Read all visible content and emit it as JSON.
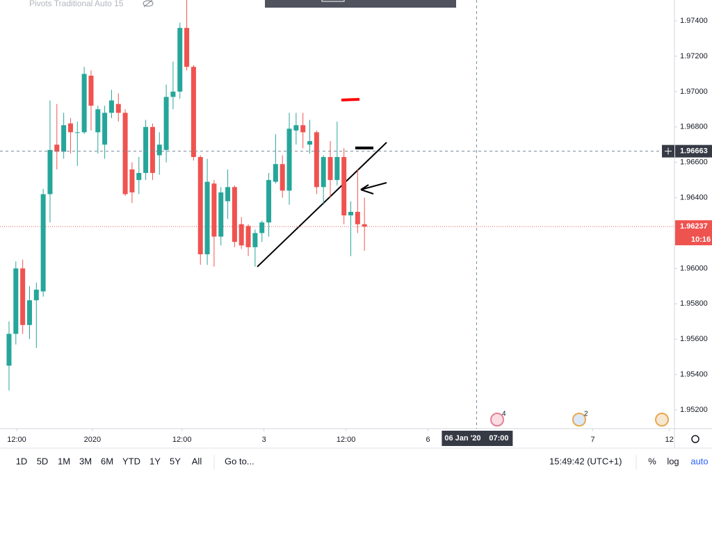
{
  "chart_data": {
    "type": "candlestick",
    "title": "Pivots Traditional Auto 15",
    "up_color": "#26a69a",
    "down_color": "#ef5350",
    "open": [
      1.9545,
      1.9563,
      1.96,
      1.9568,
      1.9582,
      1.9587,
      1.9642,
      1.967,
      1.9666,
      1.9682,
      1.9677,
      1.9677,
      1.9709,
      1.9677,
      1.967,
      1.9688,
      1.9693,
      1.9688,
      1.9656,
      1.965,
      1.9654,
      1.968,
      1.9664,
      1.9667,
      1.9697,
      1.97,
      1.9736,
      1.9714,
      1.9663,
      1.9608,
      1.9648,
      1.9618,
      1.9638,
      1.9646,
      1.9625,
      1.9624,
      1.9612,
      1.962,
      1.9626,
      1.9649,
      1.9659,
      1.9644,
      1.9678,
      1.9681,
      1.967,
      1.9677,
      1.9646,
      1.9663,
      1.965,
      1.9663,
      1.963,
      1.9632,
      1.9625
    ],
    "high": [
      1.957,
      1.9604,
      1.9605,
      1.959,
      1.9592,
      1.9645,
      1.9695,
      1.9693,
      1.9688,
      1.9685,
      1.9683,
      1.9714,
      1.9712,
      1.9692,
      1.9692,
      1.9701,
      1.9699,
      1.969,
      1.966,
      1.9663,
      1.9684,
      1.9682,
      1.9677,
      1.9704,
      1.9717,
      1.9739,
      1.9754,
      1.9715,
      1.9664,
      1.9662,
      1.965,
      1.9646,
      1.9656,
      1.9647,
      1.9629,
      1.9625,
      1.9622,
      1.9627,
      1.9654,
      1.9676,
      1.9664,
      1.9688,
      1.9688,
      1.9688,
      1.9684,
      1.9678,
      1.9664,
      1.9672,
      1.9683,
      1.9668,
      1.9638,
      1.9656,
      1.964
    ],
    "low": [
      1.9531,
      1.9557,
      1.9563,
      1.956,
      1.9555,
      1.9584,
      1.9626,
      1.9656,
      1.9662,
      1.9665,
      1.9658,
      1.9676,
      1.9678,
      1.9665,
      1.9662,
      1.9685,
      1.9683,
      1.9641,
      1.9637,
      1.9642,
      1.965,
      1.965,
      1.9653,
      1.966,
      1.969,
      1.9696,
      1.9712,
      1.9661,
      1.9602,
      1.9602,
      1.9601,
      1.9613,
      1.9628,
      1.9612,
      1.9611,
      1.9607,
      1.9601,
      1.9615,
      1.9618,
      1.9648,
      1.964,
      1.9636,
      1.967,
      1.9668,
      1.9665,
      1.9642,
      1.9636,
      1.964,
      1.9647,
      1.9625,
      1.9607,
      1.962,
      1.961
    ],
    "close": [
      1.9563,
      1.96,
      1.9568,
      1.9582,
      1.9588,
      1.9642,
      1.9667,
      1.9666,
      1.9681,
      1.9677,
      1.9677,
      1.971,
      1.9692,
      1.969,
      1.9688,
      1.9695,
      1.9688,
      1.9642,
      1.9643,
      1.9654,
      1.968,
      1.9654,
      1.967,
      1.9697,
      1.97,
      1.9736,
      1.9714,
      1.9663,
      1.9608,
      1.9649,
      1.9618,
      1.9643,
      1.9646,
      1.9615,
      1.9613,
      1.9612,
      1.962,
      1.9626,
      1.965,
      1.9659,
      1.9644,
      1.9679,
      1.9681,
      1.9677,
      1.9672,
      1.9646,
      1.9663,
      1.965,
      1.9663,
      1.963,
      1.9632,
      1.9625,
      1.96237
    ],
    "ylim": [
      1.95094,
      1.97518
    ],
    "yticks": [
      {
        "value": 1.952,
        "label": "1.95200"
      },
      {
        "value": 1.954,
        "label": "1.95400"
      },
      {
        "value": 1.956,
        "label": "1.95600"
      },
      {
        "value": 1.958,
        "label": "1.95800"
      },
      {
        "value": 1.96,
        "label": "1.96000"
      },
      {
        "value": 1.962,
        "label": "1.96200"
      },
      {
        "value": 1.964,
        "label": "1.96400"
      },
      {
        "value": 1.966,
        "label": "1.96600"
      },
      {
        "value": 1.968,
        "label": "1.96800"
      },
      {
        "value": 1.97,
        "label": "1.97000"
      },
      {
        "value": 1.972,
        "label": "1.97200"
      },
      {
        "value": 1.974,
        "label": "1.97400"
      }
    ],
    "xlim": [
      -1.32,
      97.35
    ],
    "xticks": [
      {
        "value": 1.12,
        "label": "12:00"
      },
      {
        "value": 12.2,
        "label": "2020"
      },
      {
        "value": 25.3,
        "label": "12:00"
      },
      {
        "value": 37.3,
        "label": "3"
      },
      {
        "value": 49.3,
        "label": "12:00"
      },
      {
        "value": 61.3,
        "label": "6"
      },
      {
        "value": 85.4,
        "label": "7"
      },
      {
        "value": 96.6,
        "label": "12"
      }
    ],
    "crosshair": {
      "x": 68.4,
      "date_label": "06 Jan '20",
      "time_label": "07:00",
      "y": {
        "value": 1.96663,
        "label": "1.96663"
      }
    },
    "last_price": {
      "value": 1.96237,
      "label": "1.96237"
    },
    "countdown": "10:16",
    "events": [
      "4",
      "2"
    ],
    "grid": false
  },
  "toolbar": {
    "ranges": [
      "1D",
      "5D",
      "1M",
      "3M",
      "6M",
      "YTD",
      "1Y",
      "5Y",
      "All"
    ],
    "goto": "Go to...",
    "clock": "15:49:42 (UTC+1)",
    "percent": "%",
    "log": "log",
    "auto": "auto"
  }
}
